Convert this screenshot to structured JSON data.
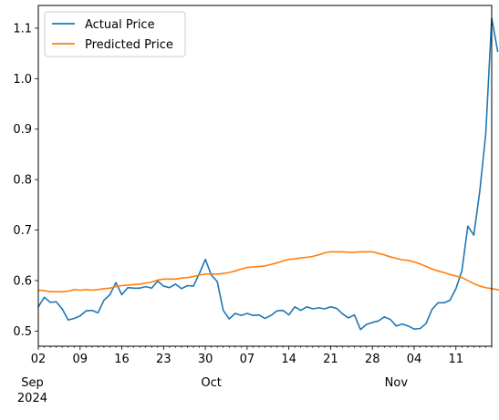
{
  "chart_data": {
    "type": "line",
    "legend": {
      "placement": "top-left",
      "entries": [
        "Actual Price",
        "Predicted Price"
      ]
    },
    "grid": false,
    "x_axis": {
      "type": "date",
      "range": [
        "2024-09-02",
        "2024-11-17"
      ],
      "major_ticks": [
        {
          "date": "2024-09-02",
          "label": "02"
        },
        {
          "date": "2024-09-09",
          "label": "09"
        },
        {
          "date": "2024-09-16",
          "label": "16"
        },
        {
          "date": "2024-09-23",
          "label": "23"
        },
        {
          "date": "2024-09-30",
          "label": "30"
        },
        {
          "date": "2024-10-07",
          "label": "07"
        },
        {
          "date": "2024-10-14",
          "label": "14"
        },
        {
          "date": "2024-10-21",
          "label": "21"
        },
        {
          "date": "2024-10-28",
          "label": "28"
        },
        {
          "date": "2024-11-04",
          "label": "04"
        },
        {
          "date": "2024-11-11",
          "label": "11"
        }
      ],
      "month_labels": [
        {
          "date": "2024-09-01",
          "label": "Sep"
        },
        {
          "date": "2024-10-01",
          "label": "Oct"
        },
        {
          "date": "2024-11-01",
          "label": "Nov"
        }
      ],
      "year_label": {
        "date": "2024-09-01",
        "label": "2024"
      }
    },
    "y_axis": {
      "range": [
        0.47,
        1.145
      ],
      "ticks": [
        {
          "value": 0.5,
          "label": "0.5"
        },
        {
          "value": 0.6,
          "label": "0.6"
        },
        {
          "value": 0.7,
          "label": "0.7"
        },
        {
          "value": 0.8,
          "label": "0.8"
        },
        {
          "value": 0.9,
          "label": "0.9"
        },
        {
          "value": 1.0,
          "label": "1.0"
        },
        {
          "value": 1.1,
          "label": "1.1"
        }
      ]
    },
    "series": [
      {
        "name": "Actual Price",
        "color": "#1f77b4",
        "start_date": "2024-09-02",
        "values": [
          0.548,
          0.567,
          0.557,
          0.558,
          0.544,
          0.522,
          0.525,
          0.53,
          0.54,
          0.541,
          0.536,
          0.561,
          0.572,
          0.596,
          0.572,
          0.586,
          0.585,
          0.585,
          0.588,
          0.585,
          0.599,
          0.589,
          0.586,
          0.593,
          0.584,
          0.59,
          0.589,
          0.614,
          0.642,
          0.611,
          0.598,
          0.541,
          0.524,
          0.535,
          0.531,
          0.535,
          0.531,
          0.532,
          0.525,
          0.531,
          0.54,
          0.541,
          0.532,
          0.548,
          0.541,
          0.548,
          0.544,
          0.546,
          0.544,
          0.548,
          0.545,
          0.534,
          0.526,
          0.532,
          0.503,
          0.513,
          0.517,
          0.52,
          0.528,
          0.523,
          0.51,
          0.514,
          0.51,
          0.504,
          0.505,
          0.515,
          0.543,
          0.556,
          0.556,
          0.561,
          0.584,
          0.619,
          0.708,
          0.69,
          0.777,
          0.89,
          1.12,
          1.054
        ]
      },
      {
        "name": "Predicted Price",
        "color": "#ff7f0e",
        "start_date": "2024-09-02",
        "values": [
          0.581,
          0.58,
          0.578,
          0.578,
          0.578,
          0.579,
          0.582,
          0.581,
          0.582,
          0.581,
          0.582,
          0.584,
          0.585,
          0.588,
          0.59,
          0.591,
          0.592,
          0.593,
          0.595,
          0.597,
          0.601,
          0.603,
          0.603,
          0.603,
          0.605,
          0.606,
          0.608,
          0.611,
          0.613,
          0.613,
          0.613,
          0.614,
          0.616,
          0.619,
          0.623,
          0.626,
          0.627,
          0.628,
          0.629,
          0.632,
          0.635,
          0.639,
          0.642,
          0.643,
          0.645,
          0.646,
          0.648,
          0.651,
          0.655,
          0.657,
          0.657,
          0.657,
          0.656,
          0.656,
          0.657,
          0.657,
          0.657,
          0.654,
          0.651,
          0.647,
          0.644,
          0.641,
          0.64,
          0.637,
          0.633,
          0.628,
          0.623,
          0.619,
          0.616,
          0.612,
          0.609,
          0.606,
          0.6,
          0.594,
          0.589,
          0.586,
          0.584,
          0.582,
          0.578
        ]
      }
    ]
  }
}
